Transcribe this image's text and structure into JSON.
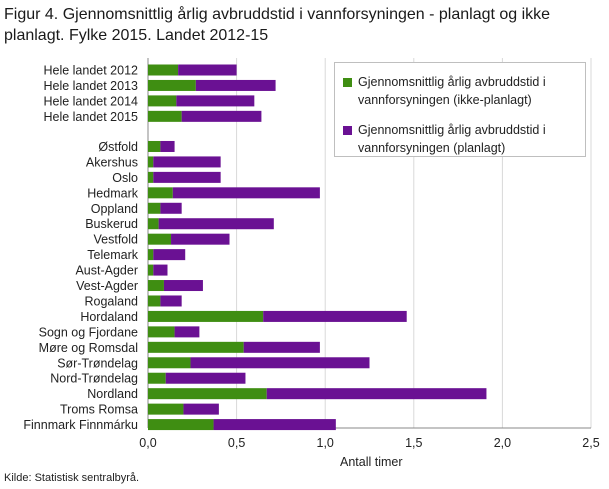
{
  "title": "Figur 4. Gjennomsnittlig årlig avbruddstid i vannforsyningen - planlagt og ikke planlagt. Fylke 2015. Landet 2012-15",
  "source": "Kilde: Statistisk sentralbyrå.",
  "colors": {
    "ikke_planlagt": "#3f8e12",
    "planlagt": "#6a1193",
    "grid": "#d9d9d9",
    "axis": "#888888"
  },
  "chart_data": {
    "type": "bar",
    "orientation": "horizontal",
    "stacked": true,
    "categories": [
      "Hele landet 2012",
      "Hele landet 2013",
      "Hele landet 2014",
      "Hele landet 2015",
      "Østfold",
      "Akershus",
      "Oslo",
      "Hedmark",
      "Oppland",
      "Buskerud",
      "Vestfold",
      "Telemark",
      "Aust-Agder",
      "Vest-Agder",
      "Rogaland",
      "Hordaland",
      "Sogn og Fjordane",
      "Møre og Romsdal",
      "Sør-Trøndelag",
      "Nord-Trøndelag",
      "Nordland",
      "Troms Romsa",
      "Finnmark Finnmárku"
    ],
    "series": [
      {
        "name": "Gjennomsnittlig årlig avbruddstid i vannforsyningen (ikke-planlagt)",
        "values": [
          0.17,
          0.27,
          0.16,
          0.19,
          0.07,
          0.03,
          0.03,
          0.14,
          0.07,
          0.06,
          0.13,
          0.03,
          0.03,
          0.09,
          0.07,
          0.65,
          0.15,
          0.54,
          0.24,
          0.1,
          0.67,
          0.2,
          0.37
        ]
      },
      {
        "name": "Gjennomsnittlig årlig avbruddstid i vannforsyningen (planlagt)",
        "values": [
          0.33,
          0.45,
          0.44,
          0.45,
          0.08,
          0.38,
          0.38,
          0.83,
          0.12,
          0.65,
          0.33,
          0.18,
          0.08,
          0.22,
          0.12,
          0.81,
          0.14,
          0.43,
          1.01,
          0.45,
          1.24,
          0.2,
          0.69
        ]
      }
    ],
    "xlabel": "Antall timer",
    "xlim": [
      0,
      2.5
    ],
    "xticks": [
      "0,0",
      "0,5",
      "1,0",
      "1,5",
      "2,0",
      "2,5"
    ],
    "gap_after_index": 3,
    "grid": true,
    "legend_position": "top-right"
  }
}
